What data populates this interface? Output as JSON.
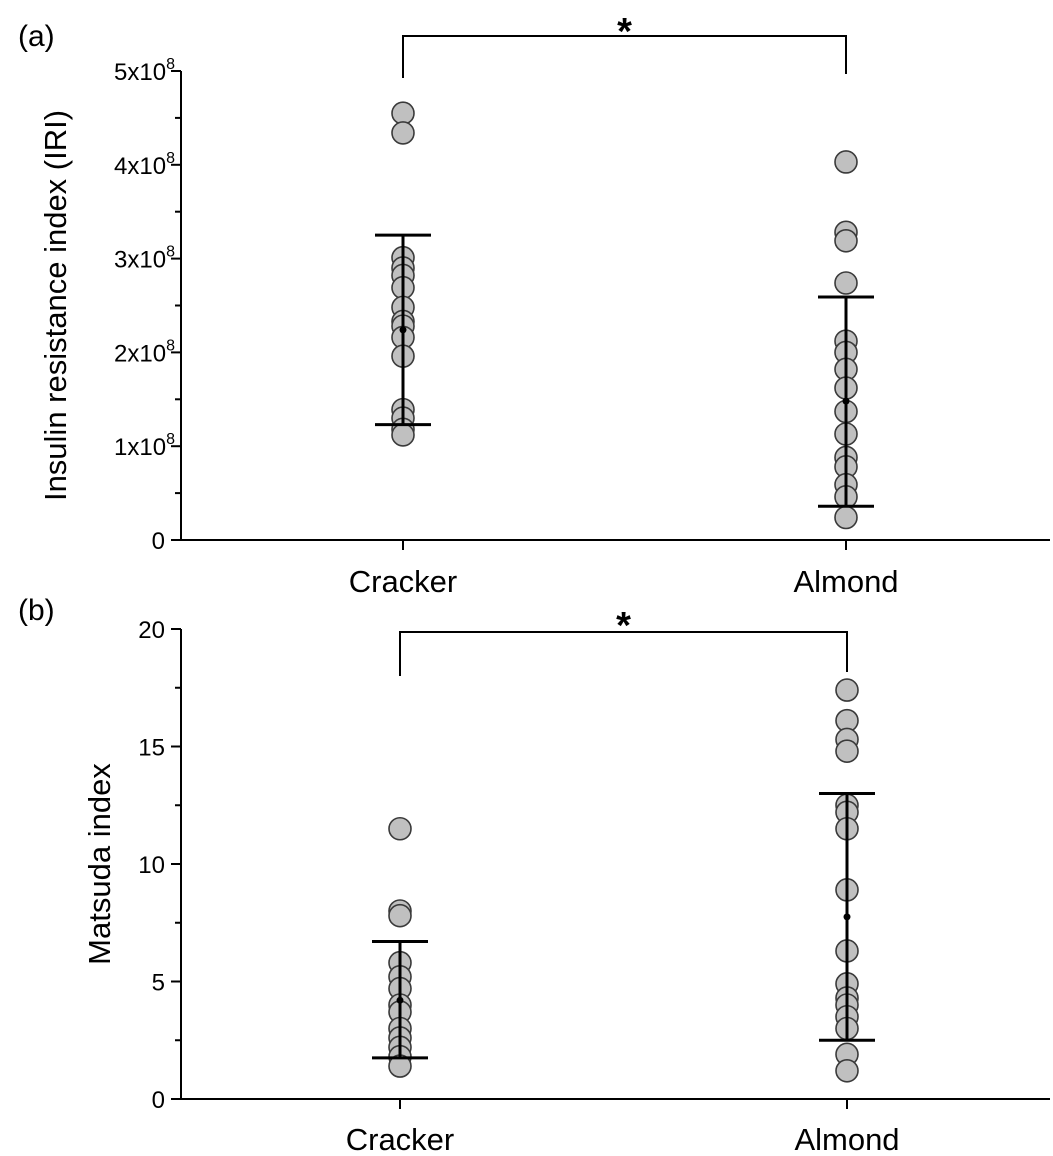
{
  "chart_data": [
    {
      "panel_label": "(a)",
      "type": "scatter",
      "categories": [
        "Cracker",
        "Almond"
      ],
      "ylabel": "Insulin resistance index (IRI)",
      "ylim": [
        0,
        500000000
      ],
      "yticks": [
        {
          "value": 0,
          "base": "0",
          "exp": ""
        },
        {
          "value": 100000000,
          "base": "1x10",
          "exp": "8"
        },
        {
          "value": 200000000,
          "base": "2x10",
          "exp": "8"
        },
        {
          "value": 300000000,
          "base": "3x10",
          "exp": "8"
        },
        {
          "value": 400000000,
          "base": "4x10",
          "exp": "8"
        },
        {
          "value": 500000000,
          "base": "5x10",
          "exp": "8"
        }
      ],
      "significance": "*",
      "series": [
        {
          "category": "Cracker",
          "values": [
            455000000,
            434000000,
            301000000,
            290000000,
            282000000,
            269000000,
            248000000,
            233000000,
            228000000,
            216000000,
            196000000,
            139000000,
            130000000,
            118000000,
            112000000
          ],
          "mean": 224000000,
          "sd_low": 123000000,
          "sd_high": 325000000
        },
        {
          "category": "Almond",
          "values": [
            403000000,
            328000000,
            319000000,
            274000000,
            212000000,
            200000000,
            182000000,
            162000000,
            137000000,
            113000000,
            88000000,
            78000000,
            59000000,
            46000000,
            24000000
          ],
          "mean": 148000000,
          "sd_low": 36000000,
          "sd_high": 259000000
        }
      ]
    },
    {
      "panel_label": "(b)",
      "type": "scatter",
      "categories": [
        "Cracker",
        "Almond"
      ],
      "ylabel": "Matsuda index",
      "ylim": [
        0,
        20
      ],
      "yticks": [
        {
          "value": 0,
          "base": "0",
          "exp": ""
        },
        {
          "value": 5,
          "base": "5",
          "exp": ""
        },
        {
          "value": 10,
          "base": "10",
          "exp": ""
        },
        {
          "value": 15,
          "base": "15",
          "exp": ""
        },
        {
          "value": 20,
          "base": "20",
          "exp": ""
        }
      ],
      "significance": "*",
      "series": [
        {
          "category": "Cracker",
          "values": [
            11.5,
            8.0,
            7.8,
            5.8,
            5.2,
            4.7,
            4.0,
            3.7,
            3.0,
            2.6,
            2.2,
            1.8,
            1.4
          ],
          "mean": 4.2,
          "sd_low": 1.75,
          "sd_high": 6.7
        },
        {
          "category": "Almond",
          "values": [
            17.4,
            16.1,
            15.3,
            14.8,
            12.5,
            12.2,
            11.5,
            8.9,
            6.3,
            4.9,
            4.3,
            4.0,
            3.5,
            3.0,
            1.9,
            1.2
          ],
          "mean": 7.75,
          "sd_low": 2.5,
          "sd_high": 13.0
        }
      ]
    }
  ]
}
